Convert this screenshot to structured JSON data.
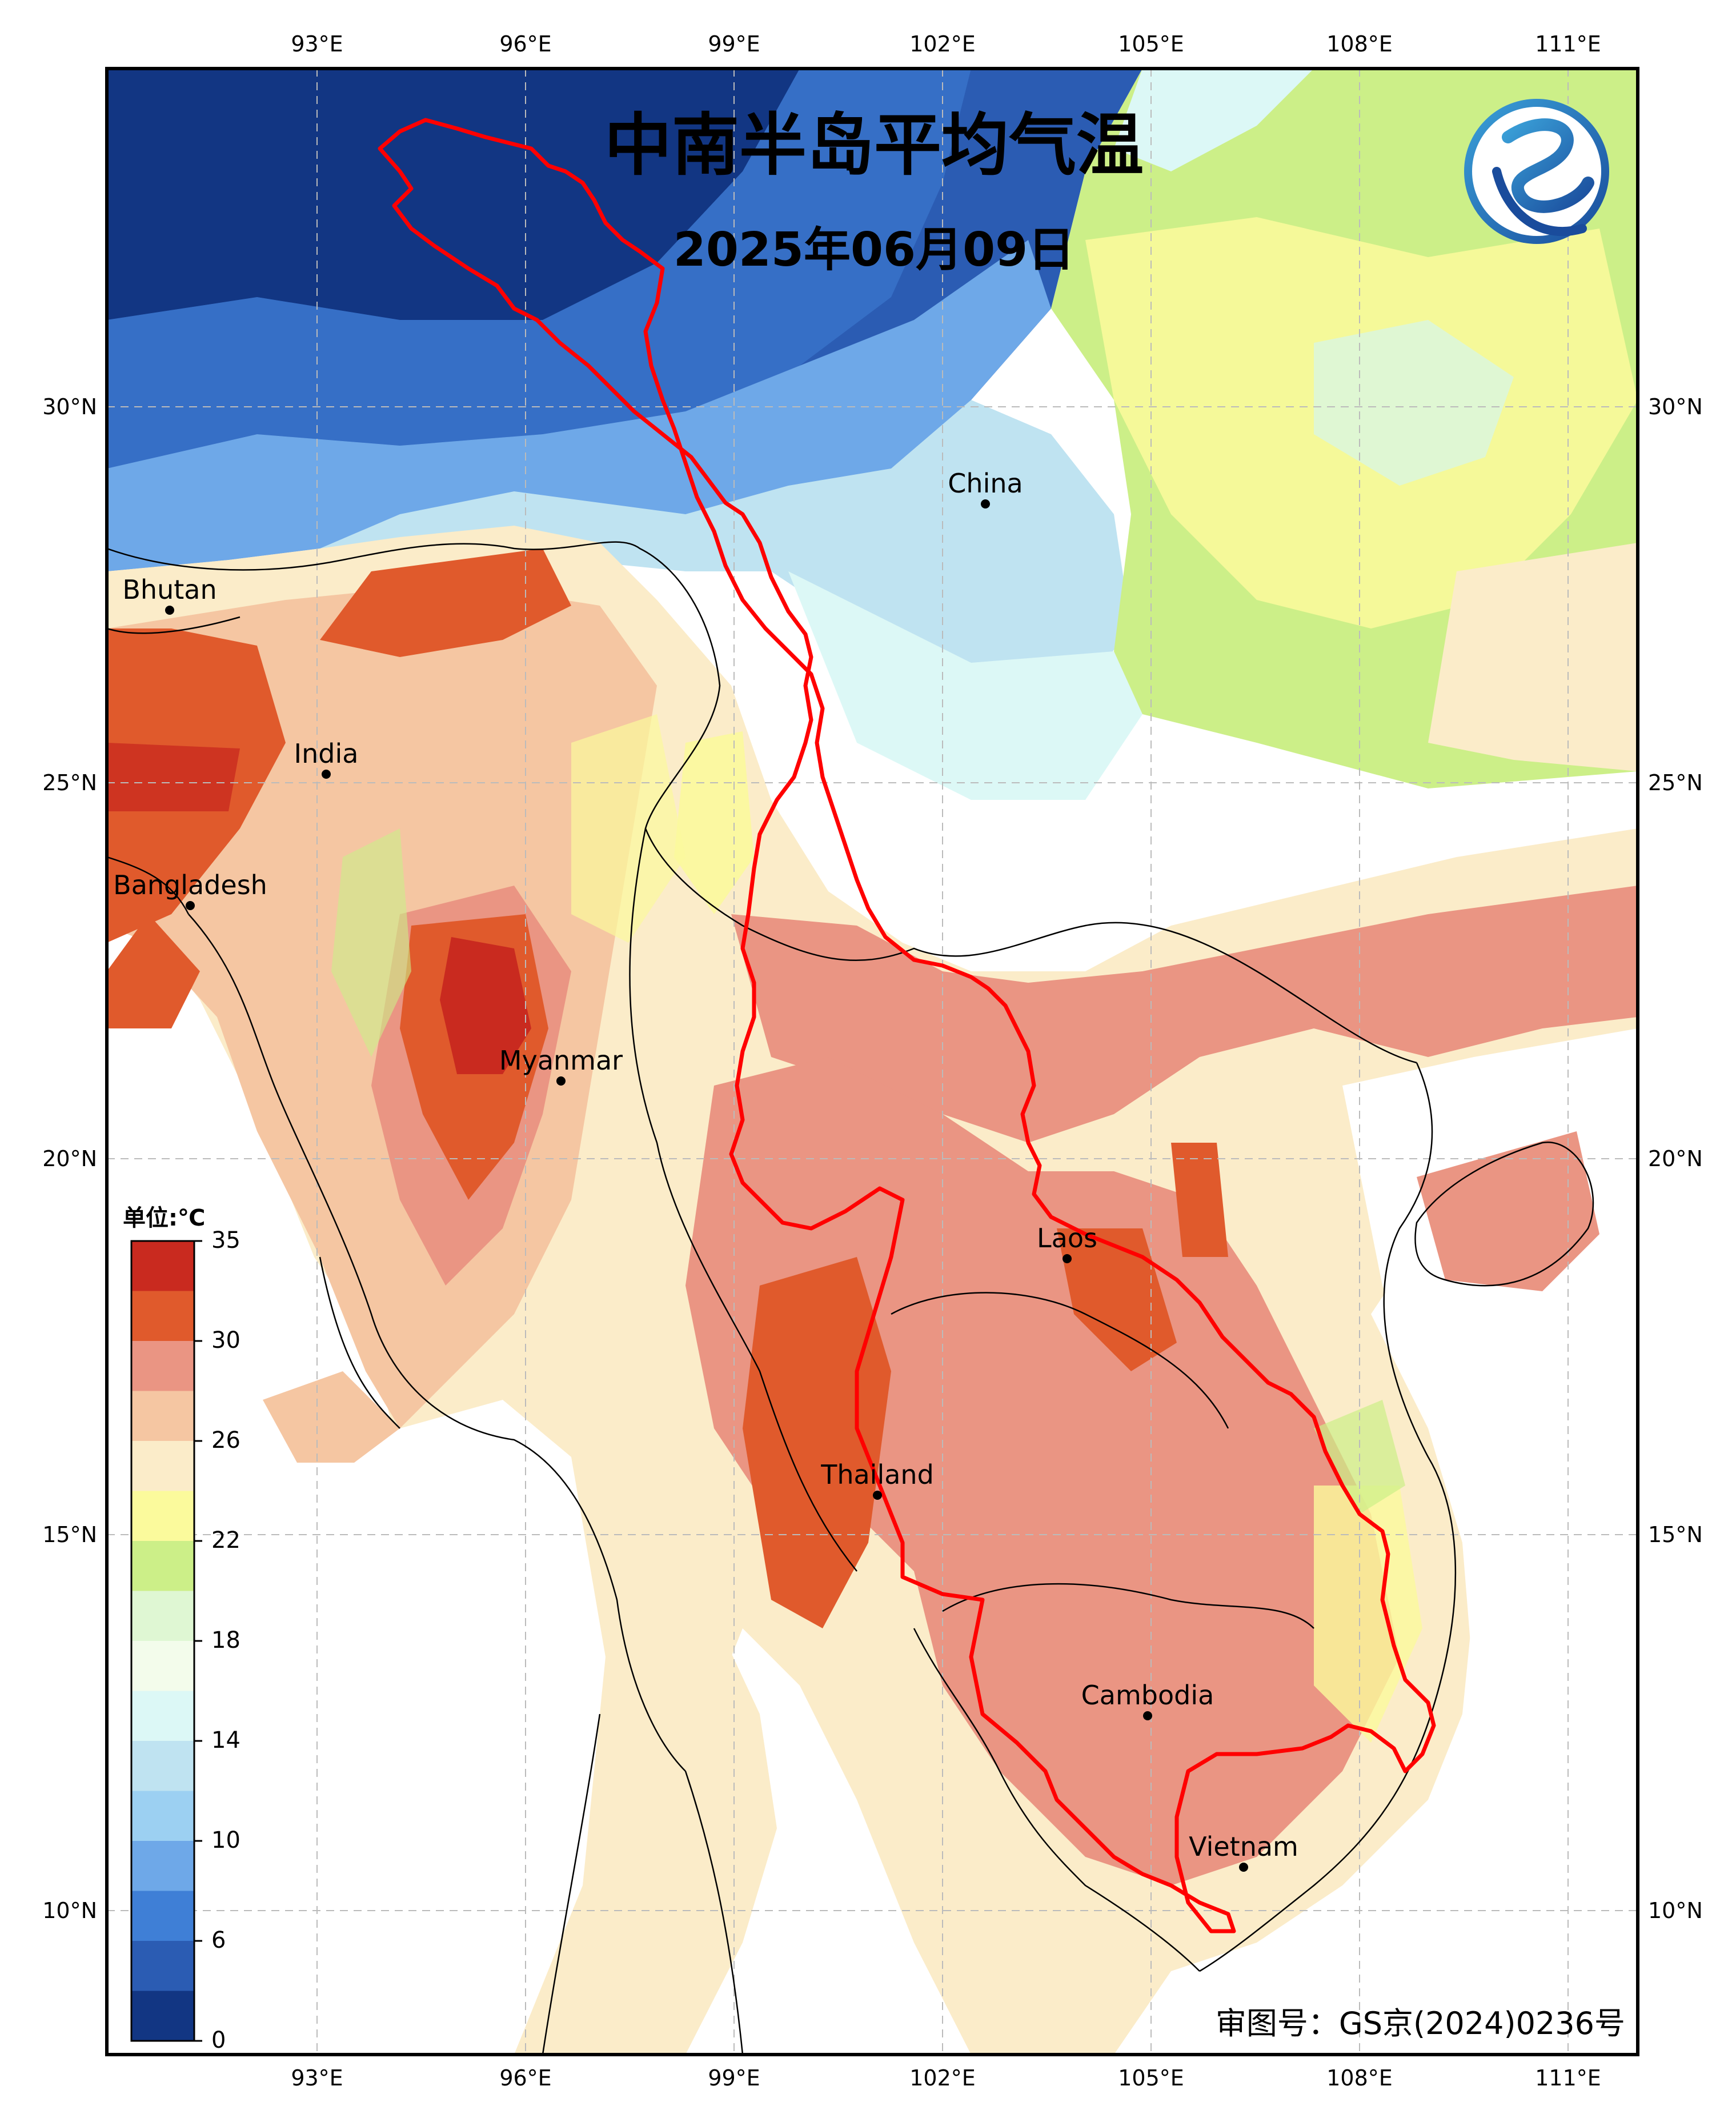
{
  "title": "中南半岛平均气温",
  "date": "2025年06月09日",
  "approval_number": "审图号：GS京(2024)0236号",
  "logo": {
    "icon": "weather-agency-logo",
    "colors": [
      "#1a4c9c",
      "#3aa0d8"
    ]
  },
  "lon_ticks": [
    "93°E",
    "96°E",
    "99°E",
    "102°E",
    "105°E",
    "108°E",
    "111°E"
  ],
  "lat_ticks": [
    "30°N",
    "25°N",
    "20°N",
    "15°N",
    "10°N"
  ],
  "legend": {
    "unit": "单位:℃",
    "labels": [
      "35",
      "30",
      "26",
      "22",
      "18",
      "14",
      "10",
      "6",
      "0"
    ],
    "colors": [
      "#c92a1f",
      "#e05a2c",
      "#ea9583",
      "#f5c6a2",
      "#fbecc9",
      "#fbfa9c",
      "#ccef88",
      "#dff7d3",
      "#f3fceb",
      "#dcf8f6",
      "#bfe3f1",
      "#9cd0f2",
      "#6ea8e8",
      "#3f7fd6",
      "#2b5cb3",
      "#123683"
    ]
  },
  "places": [
    {
      "name": "China",
      "lon": 102.6,
      "lat": 28.6
    },
    {
      "name": "Bhutan",
      "lon": 90.8,
      "lat": 27.2
    },
    {
      "name": "India",
      "lon": 93.1,
      "lat": 25.0
    },
    {
      "name": "Bangladesh",
      "lon": 90.8,
      "lat": 23.3
    },
    {
      "name": "Myanmar",
      "lon": 96.6,
      "lat": 21.0
    },
    {
      "name": "Laos",
      "lon": 103.8,
      "lat": 18.6
    },
    {
      "name": "Thailand",
      "lon": 101.0,
      "lat": 15.5
    },
    {
      "name": "Cambodia",
      "lon": 104.9,
      "lat": 12.6
    },
    {
      "name": "Vietnam",
      "lon": 106.5,
      "lat": 10.6
    }
  ],
  "colors": {
    "mekong_basin_outline": "#ff0000",
    "grid": "#bbbbbb",
    "frame": "#000000",
    "sea": "#ffffff"
  }
}
